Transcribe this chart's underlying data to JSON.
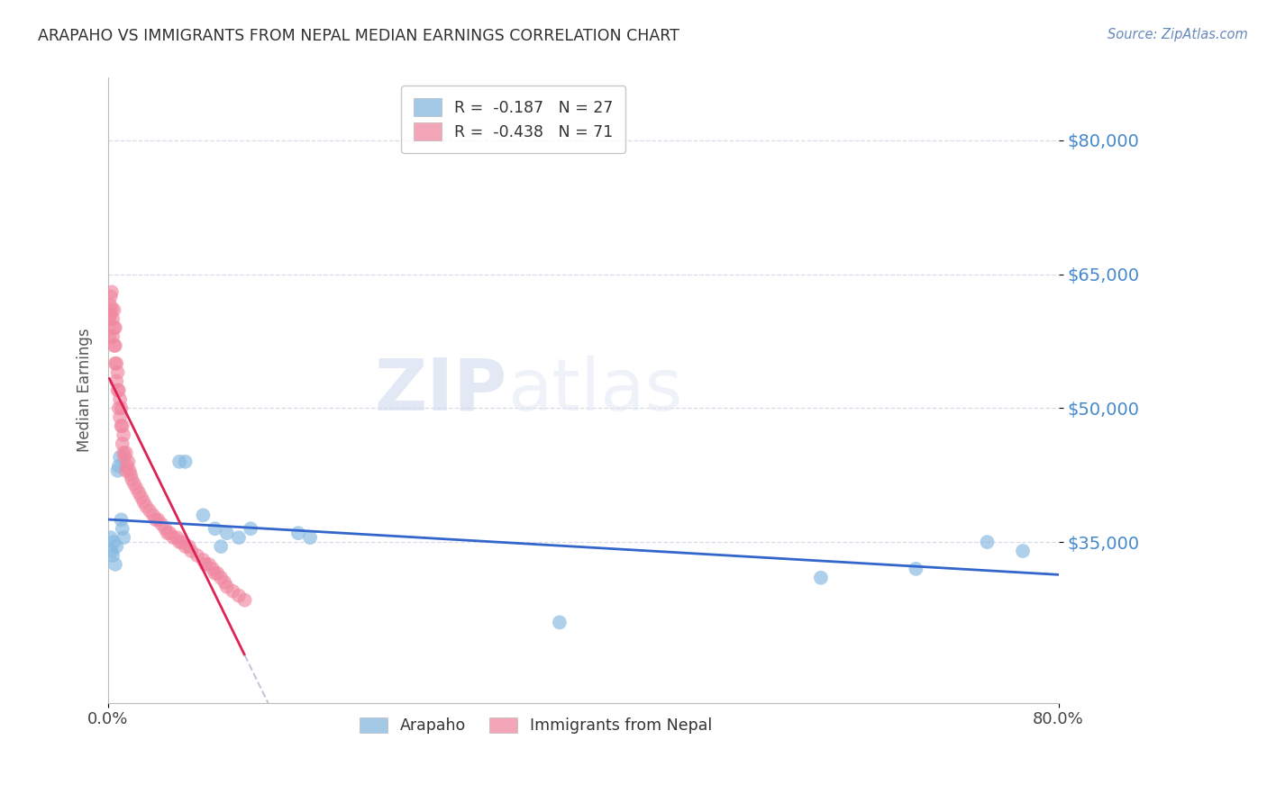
{
  "title": "ARAPAHO VS IMMIGRANTS FROM NEPAL MEDIAN EARNINGS CORRELATION CHART",
  "source": "Source: ZipAtlas.com",
  "ylabel": "Median Earnings",
  "watermark_part1": "ZIP",
  "watermark_part2": "atlas",
  "xlim": [
    0.0,
    0.8
  ],
  "ylim": [
    17000,
    87000
  ],
  "ytick_vals": [
    35000,
    50000,
    65000,
    80000
  ],
  "ytick_labels": [
    "$35,000",
    "$50,000",
    "$65,000",
    "$80,000"
  ],
  "legend_r1": "R =  -0.187   N = 27",
  "legend_r2": "R =  -0.438   N = 71",
  "arapaho_color": "#85b8e0",
  "nepal_color": "#f088a0",
  "arapaho_line_color": "#3366cc",
  "nepal_line_color": "#dd2255",
  "nepal_dash_color": "#c0c8d8",
  "title_color": "#303030",
  "source_color": "#6688bb",
  "ytick_color": "#4488cc",
  "grid_color": "#d8dce8",
  "arapaho_x": [
    0.002,
    0.003,
    0.004,
    0.005,
    0.006,
    0.007,
    0.008,
    0.009,
    0.01,
    0.011,
    0.012,
    0.013,
    0.06,
    0.065,
    0.08,
    0.09,
    0.095,
    0.1,
    0.11,
    0.12,
    0.16,
    0.17,
    0.38,
    0.6,
    0.68,
    0.74,
    0.77
  ],
  "arapaho_y": [
    35500,
    34000,
    33500,
    35000,
    32500,
    34500,
    43000,
    43500,
    44500,
    37500,
    36500,
    35500,
    44000,
    44000,
    38000,
    36500,
    34500,
    36000,
    35500,
    36500,
    36000,
    35500,
    26000,
    31000,
    32000,
    35000,
    34000
  ],
  "nepal_x": [
    0.001,
    0.001,
    0.002,
    0.002,
    0.002,
    0.003,
    0.003,
    0.004,
    0.004,
    0.005,
    0.005,
    0.005,
    0.006,
    0.006,
    0.006,
    0.007,
    0.007,
    0.008,
    0.008,
    0.009,
    0.009,
    0.01,
    0.01,
    0.011,
    0.011,
    0.012,
    0.012,
    0.013,
    0.013,
    0.014,
    0.015,
    0.015,
    0.016,
    0.017,
    0.018,
    0.019,
    0.02,
    0.022,
    0.024,
    0.026,
    0.028,
    0.03,
    0.032,
    0.035,
    0.038,
    0.04,
    0.042,
    0.045,
    0.048,
    0.05,
    0.052,
    0.055,
    0.058,
    0.06,
    0.062,
    0.065,
    0.068,
    0.07,
    0.075,
    0.08,
    0.082,
    0.085,
    0.088,
    0.09,
    0.092,
    0.095,
    0.098,
    0.1,
    0.105,
    0.11,
    0.115
  ],
  "nepal_y": [
    58000,
    60000,
    60500,
    61500,
    62500,
    61000,
    63000,
    58000,
    60000,
    57000,
    59000,
    61000,
    55000,
    57000,
    59000,
    53000,
    55000,
    52000,
    54000,
    50000,
    52000,
    49000,
    51000,
    48000,
    50000,
    46000,
    48000,
    45000,
    47000,
    44500,
    43000,
    45000,
    43500,
    44000,
    43000,
    42500,
    42000,
    41500,
    41000,
    40500,
    40000,
    39500,
    39000,
    38500,
    38000,
    37500,
    37500,
    37000,
    36500,
    36000,
    36000,
    35500,
    35500,
    35000,
    35000,
    34500,
    34500,
    34000,
    33500,
    33000,
    32500,
    32500,
    32000,
    31500,
    31500,
    31000,
    30500,
    30000,
    29500,
    29000,
    28500
  ],
  "nepal_line_x_start": 0.001,
  "nepal_line_x_solid_end": 0.115,
  "nepal_line_x_dash_end": 0.22,
  "arapaho_line_x_start": 0.0,
  "arapaho_line_x_end": 0.8
}
